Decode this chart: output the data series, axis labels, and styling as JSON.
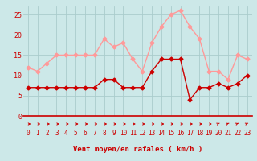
{
  "x": [
    0,
    1,
    2,
    3,
    4,
    5,
    6,
    7,
    8,
    9,
    10,
    11,
    12,
    13,
    14,
    15,
    16,
    17,
    18,
    19,
    20,
    21,
    22,
    23
  ],
  "avg_wind": [
    7,
    7,
    7,
    7,
    7,
    7,
    7,
    7,
    9,
    9,
    7,
    7,
    7,
    11,
    14,
    14,
    14,
    4,
    7,
    7,
    8,
    7,
    8,
    10
  ],
  "gust_wind": [
    12,
    11,
    13,
    15,
    15,
    15,
    15,
    15,
    19,
    17,
    18,
    14,
    11,
    18,
    22,
    25,
    26,
    22,
    19,
    11,
    11,
    9,
    15,
    14
  ],
  "bg_color": "#cce8e8",
  "grid_color": "#aacccc",
  "avg_color": "#cc0000",
  "gust_color": "#ff9999",
  "xlabel": "Vent moyen/en rafales ( km/h )",
  "xlabel_color": "#cc0000",
  "ylim": [
    0,
    27
  ],
  "yticks": [
    0,
    5,
    10,
    15,
    20,
    25
  ],
  "marker_size": 2.5,
  "line_width": 1.0
}
